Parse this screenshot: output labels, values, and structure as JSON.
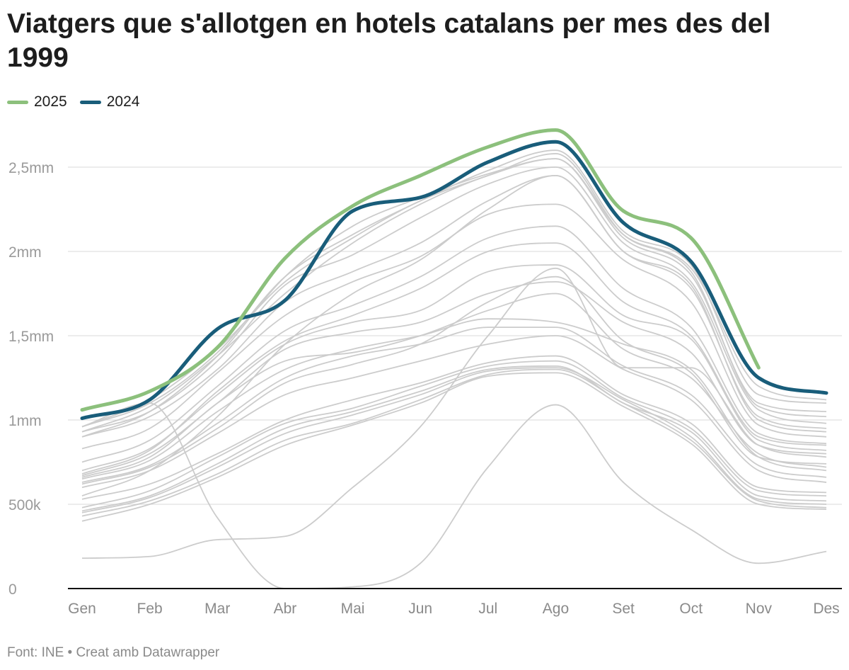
{
  "title": "Viatgers que s'allotgen en hotels catalans per mes des del 1999",
  "footer": "Font: INE • Creat amb Datawrapper",
  "chart_data": {
    "type": "line",
    "title": "Viatgers que s'allotgen en hotels catalans per mes des del 1999",
    "categories": [
      "Gen",
      "Feb",
      "Mar",
      "Abr",
      "Mai",
      "Jun",
      "Jul",
      "Ago",
      "Set",
      "Oct",
      "Nov",
      "Des"
    ],
    "y_unit": "millions",
    "ylim": [
      0,
      2.75
    ],
    "y_ticks": [
      0,
      0.5,
      1,
      1.5,
      2,
      2.5
    ],
    "y_tick_labels": [
      "0",
      "500k",
      "1mm",
      "1,5mm",
      "2mm",
      "2,5mm"
    ],
    "grid": true,
    "legend": "top-left",
    "legend_entries": [
      "2025",
      "2024"
    ],
    "colors": {
      "2025": "#8cc07c",
      "2024": "#195d7a",
      "other_years": "#cccccc"
    },
    "highlight_series": [
      {
        "name": "2025",
        "values": [
          1.06,
          1.17,
          1.43,
          1.96,
          2.27,
          2.45,
          2.62,
          2.72,
          2.24,
          2.08,
          1.31,
          null
        ]
      },
      {
        "name": "2024",
        "values": [
          1.01,
          1.12,
          1.54,
          1.71,
          2.24,
          2.32,
          2.53,
          2.65,
          2.17,
          1.94,
          1.25,
          1.16
        ]
      }
    ],
    "background_series": [
      [
        0.43,
        0.52,
        0.68,
        0.88,
        0.98,
        1.12,
        1.27,
        1.3,
        1.1,
        0.88,
        0.52,
        0.48
      ],
      [
        0.45,
        0.54,
        0.72,
        0.92,
        1.03,
        1.15,
        1.29,
        1.31,
        1.12,
        0.9,
        0.53,
        0.5
      ],
      [
        0.46,
        0.55,
        0.74,
        0.95,
        1.05,
        1.17,
        1.3,
        1.32,
        1.1,
        0.93,
        0.55,
        0.52
      ],
      [
        0.4,
        0.5,
        0.66,
        0.85,
        0.97,
        1.1,
        1.26,
        1.28,
        1.08,
        0.86,
        0.5,
        0.47
      ],
      [
        0.48,
        0.58,
        0.78,
        0.98,
        1.07,
        1.2,
        1.32,
        1.35,
        1.13,
        0.95,
        0.58,
        0.55
      ],
      [
        0.53,
        0.62,
        0.8,
        1.0,
        1.12,
        1.22,
        1.34,
        1.38,
        1.15,
        0.98,
        0.6,
        0.57
      ],
      [
        0.6,
        0.7,
        0.92,
        1.15,
        1.25,
        1.35,
        1.45,
        1.5,
        1.3,
        1.12,
        0.7,
        0.63
      ],
      [
        0.63,
        0.73,
        0.98,
        1.25,
        1.38,
        1.45,
        1.55,
        1.55,
        1.32,
        1.15,
        0.73,
        0.66
      ],
      [
        0.65,
        0.76,
        1.05,
        1.3,
        1.42,
        1.5,
        1.6,
        1.58,
        1.45,
        1.3,
        0.78,
        0.7
      ],
      [
        0.66,
        0.78,
        1.1,
        1.35,
        1.4,
        1.5,
        1.65,
        1.75,
        1.42,
        1.25,
        0.8,
        0.72
      ],
      [
        0.62,
        0.72,
        0.95,
        1.22,
        1.33,
        1.45,
        1.7,
        1.85,
        1.47,
        1.28,
        0.78,
        0.74
      ],
      [
        0.67,
        0.8,
        1.1,
        1.42,
        1.52,
        1.58,
        1.75,
        1.82,
        1.58,
        1.4,
        0.85,
        0.8
      ],
      [
        0.7,
        0.83,
        1.15,
        1.45,
        1.58,
        1.65,
        1.88,
        1.92,
        1.62,
        1.48,
        0.88,
        0.82
      ],
      [
        0.68,
        0.82,
        1.17,
        1.47,
        1.62,
        1.78,
        2.0,
        2.05,
        1.7,
        1.5,
        0.9,
        0.85
      ],
      [
        0.75,
        0.88,
        1.2,
        1.53,
        1.68,
        1.85,
        2.08,
        2.15,
        1.78,
        1.55,
        0.92,
        0.86
      ],
      [
        0.83,
        0.95,
        1.28,
        1.62,
        1.82,
        1.97,
        2.22,
        2.28,
        1.95,
        1.7,
        0.97,
        0.9
      ],
      [
        0.9,
        1.02,
        1.3,
        1.7,
        1.88,
        2.05,
        2.3,
        2.45,
        2.0,
        1.78,
        1.02,
        0.95
      ],
      [
        0.93,
        1.05,
        1.35,
        1.8,
        1.98,
        2.2,
        2.4,
        2.5,
        2.05,
        1.82,
        1.06,
        0.98
      ],
      [
        0.96,
        1.12,
        1.42,
        1.82,
        2.08,
        2.3,
        2.45,
        2.58,
        2.1,
        1.88,
        1.08,
        1.02
      ],
      [
        0.93,
        1.08,
        1.38,
        1.75,
        2.05,
        2.28,
        2.45,
        2.55,
        2.08,
        1.86,
        1.1,
        1.05
      ],
      [
        0.96,
        1.1,
        1.4,
        1.85,
        2.1,
        2.3,
        2.48,
        2.6,
        2.12,
        1.92,
        1.15,
        1.1
      ],
      [
        0.96,
        1.1,
        0.42,
        0.0,
        0.01,
        0.15,
        0.72,
        1.09,
        0.63,
        0.35,
        0.15,
        0.22
      ],
      [
        0.18,
        0.19,
        0.29,
        0.31,
        0.6,
        0.96,
        1.5,
        1.9,
        1.31,
        1.31,
        0.85,
        0.78
      ],
      [
        0.55,
        0.7,
        1.02,
        1.45,
        1.75,
        1.95,
        2.25,
        2.45,
        2.0,
        1.8,
        1.0,
        0.93
      ],
      [
        0.9,
        1.05,
        1.38,
        1.85,
        2.15,
        2.32,
        2.46,
        2.55,
        2.1,
        1.9,
        1.2,
        1.12
      ]
    ]
  }
}
